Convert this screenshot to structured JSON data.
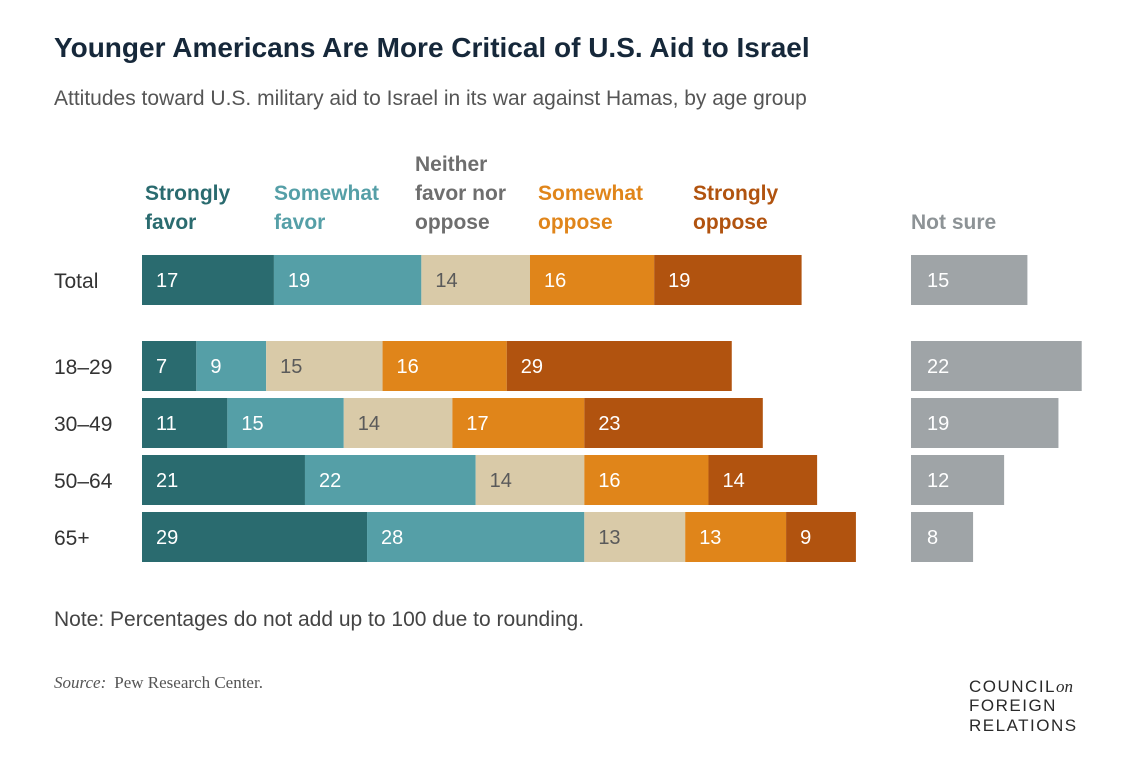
{
  "chart_data": {
    "type": "bar",
    "stacked": true,
    "orientation": "horizontal",
    "title": "Younger Americans Are More Critical of U.S. Aid to Israel",
    "subtitle": "Attitudes toward U.S. military aid to Israel in its war against Hamas, by age group",
    "categories": [
      "Total",
      "18–29",
      "30–49",
      "50–64",
      "65+"
    ],
    "series": [
      {
        "name": "Strongly favor",
        "legend_lines": [
          "Strongly",
          "favor"
        ],
        "color": "#2a6b6f",
        "text_color": "#ffffff",
        "values": [
          17,
          7,
          11,
          21,
          29
        ]
      },
      {
        "name": "Somewhat favor",
        "legend_lines": [
          "Somewhat",
          "favor"
        ],
        "color": "#559fa7",
        "text_color": "#ffffff",
        "values": [
          19,
          9,
          15,
          22,
          28
        ]
      },
      {
        "name": "Neither favor nor oppose",
        "legend_lines": [
          "Neither",
          "favor nor",
          "oppose"
        ],
        "legend_color": "#6e6e6e",
        "color": "#d9caa8",
        "text_color": "#5a5a5a",
        "values": [
          14,
          15,
          14,
          14,
          13
        ]
      },
      {
        "name": "Somewhat oppose",
        "legend_lines": [
          "Somewhat",
          "oppose"
        ],
        "color": "#e0851a",
        "text_color": "#ffffff",
        "values": [
          16,
          16,
          17,
          16,
          13
        ]
      },
      {
        "name": "Strongly oppose",
        "legend_lines": [
          "Strongly",
          "oppose"
        ],
        "color": "#b1530f",
        "text_color": "#ffffff",
        "values": [
          19,
          29,
          23,
          14,
          9
        ]
      }
    ],
    "separate_series": {
      "name": "Not sure",
      "legend_lines": [
        "Not sure"
      ],
      "legend_color": "#8d9396",
      "color": "#9fa4a7",
      "text_color": "#ffffff",
      "values": [
        15,
        22,
        19,
        12,
        8
      ]
    },
    "xlim": [
      0,
      100
    ],
    "grid": false,
    "legend": "top"
  },
  "note": "Note: Percentages do not add up to 100 due to rounding.",
  "source_label": "Source:",
  "source": "Pew Research Center.",
  "logo": {
    "line1": "COUNCIL",
    "on": "on",
    "line2": "FOREIGN",
    "line3": "RELATIONS"
  }
}
